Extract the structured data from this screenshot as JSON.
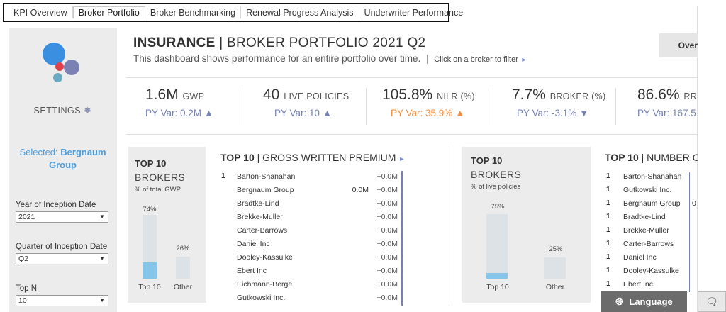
{
  "tabs": [
    "KPI Overview",
    "Broker Portfolio",
    "Broker Benchmarking",
    "Renewal Progress Analysis",
    "Underwriter Performance"
  ],
  "active_tab": "Broker Portfolio",
  "sidebar": {
    "settings_label": "SETTINGS",
    "selected_prefix": "Selected:",
    "selected_value_line1": "Bergnaum",
    "selected_value_line2": "Group",
    "filters": [
      {
        "label": "Year of Inception Date",
        "value": "2021"
      },
      {
        "label": "Quarter of Inception Date",
        "value": "Q2"
      },
      {
        "label": "Top N",
        "value": "10"
      }
    ]
  },
  "header": {
    "title_bold": "INSURANCE",
    "title_rest": " | BROKER PORTFOLIO 2021 Q2",
    "description": "This dashboard shows performance for an entire portfolio over time.",
    "hint": "Click on a broker to filter",
    "overview_button": "Over"
  },
  "kpis": [
    {
      "value": "1.6M",
      "unit": "GWP",
      "var": "PY Var: 0.2M",
      "dir": "▲",
      "color": "#7481b4"
    },
    {
      "value": "40",
      "unit": "LIVE POLICIES",
      "var": "PY Var: 10",
      "dir": "▲",
      "color": "#7481b4"
    },
    {
      "value": "105.8%",
      "unit": "NILR (%)",
      "var": "PY Var: 35.9%",
      "dir": "▲",
      "color": "#ef8c3a"
    },
    {
      "value": "7.7%",
      "unit": "BROKER (%)",
      "var": "PY Var: -3.1%",
      "dir": "▼",
      "color": "#7481b4"
    },
    {
      "value": "86.6%",
      "unit": "RRV",
      "var": "PY Var: 167.5",
      "dir": "",
      "color": "#7481b4"
    }
  ],
  "gwp_panel": {
    "title": "TOP 10",
    "subtitle": "BROKERS",
    "note": "% of total GWP",
    "top10_pct": "74%",
    "other_pct": "26%",
    "top10_value": 0.74,
    "other_value": 0.26,
    "top10_highlight": 0.25,
    "top10_label": "Top 10",
    "other_label": "Other"
  },
  "gwp_list": {
    "title_bold": "TOP 10",
    "title_rest": " | GROSS WRITTEN PREMIUM",
    "rows": [
      {
        "rank": "1",
        "name": "Barton-Shanahan",
        "value": "",
        "change": "+0.0M"
      },
      {
        "rank": "",
        "name": "Bergnaum Group",
        "value": "0.0M",
        "change": "+0.0M"
      },
      {
        "rank": "",
        "name": "Bradtke-Lind",
        "value": "",
        "change": "+0.0M"
      },
      {
        "rank": "",
        "name": "Brekke-Muller",
        "value": "",
        "change": "+0.0M"
      },
      {
        "rank": "",
        "name": "Carter-Barrows",
        "value": "",
        "change": "+0.0M"
      },
      {
        "rank": "",
        "name": "Daniel Inc",
        "value": "",
        "change": "+0.0M"
      },
      {
        "rank": "",
        "name": "Dooley-Kassulke",
        "value": "",
        "change": "+0.0M"
      },
      {
        "rank": "",
        "name": "Ebert Inc",
        "value": "",
        "change": "+0.0M"
      },
      {
        "rank": "",
        "name": "Eichmann-Berge",
        "value": "",
        "change": "+0.0M"
      },
      {
        "rank": "",
        "name": "Gutkowski Inc.",
        "value": "",
        "change": "+0.0M"
      }
    ]
  },
  "policies_panel": {
    "title": "TOP 10",
    "subtitle": "BROKERS",
    "note": "% of live policies",
    "top10_pct": "75%",
    "other_pct": "25%",
    "top10_value": 0.75,
    "other_value": 0.25,
    "top10_highlight": 0.09,
    "top10_label": "Top 10",
    "other_label": "Other"
  },
  "policies_list": {
    "title_bold": "TOP 10",
    "title_rest": " | NUMBER O",
    "rows": [
      {
        "rank": "1",
        "name": "Barton-Shanahan",
        "value": ""
      },
      {
        "rank": "1",
        "name": "Gutkowski Inc.",
        "value": ""
      },
      {
        "rank": "1",
        "name": "Bergnaum Group",
        "value": "0"
      },
      {
        "rank": "1",
        "name": "Bradtke-Lind",
        "value": ""
      },
      {
        "rank": "1",
        "name": "Brekke-Muller",
        "value": ""
      },
      {
        "rank": "1",
        "name": "Carter-Barrows",
        "value": ""
      },
      {
        "rank": "1",
        "name": "Daniel Inc",
        "value": ""
      },
      {
        "rank": "1",
        "name": "Dooley-Kassulke",
        "value": ""
      },
      {
        "rank": "1",
        "name": "Ebert Inc",
        "value": ""
      }
    ]
  },
  "footer": {
    "language_button": "Language"
  },
  "colors": {
    "accent_blue": "#4c9fe0",
    "var_purple": "#7481b4",
    "var_orange": "#ef8c3a",
    "bar_highlight": "#86c5ea",
    "panel_bg": "#ececec"
  }
}
